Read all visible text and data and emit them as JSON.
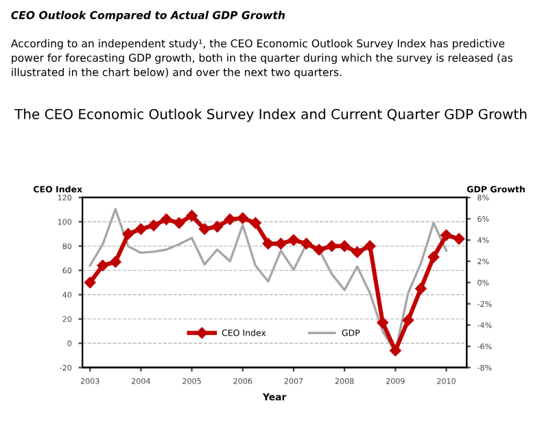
{
  "chart_data": {
    "type": "line",
    "title": "The CEO Economic Outlook Survey Index and Current Quarter GDP Growth",
    "annotations": [
      "CEO Outlook Compared to Actual GDP Growth",
      "According to an independent study¹, the CEO Economic Outlook Survey Index has predictive power for forecasting GDP growth, both in the quarter during which the survey is released (as illustrated in the chart below) and over the next two quarters."
    ],
    "xlabel": "Year",
    "ylabel": "CEO Index",
    "y2label": "GDP Growth",
    "xlim": [
      2002.85,
      2010.4
    ],
    "xticks": [
      2003,
      2004,
      2005,
      2006,
      2007,
      2008,
      2009,
      2010
    ],
    "ylim": [
      -20,
      120
    ],
    "yticks": [
      -20,
      0,
      20,
      40,
      60,
      80,
      100,
      120
    ],
    "y2lim": [
      -8,
      8
    ],
    "y2ticks": [
      {
        "value": -8,
        "label": "-8%"
      },
      {
        "value": -6,
        "label": "-6%"
      },
      {
        "value": -4,
        "label": "-4%"
      },
      {
        "value": -2,
        "label": "-2%"
      },
      {
        "value": 0,
        "label": "0%"
      },
      {
        "value": 2,
        "label": "2%"
      },
      {
        "value": 4,
        "label": "4%"
      },
      {
        "value": 6,
        "label": "6%"
      },
      {
        "value": 8,
        "label": "8%"
      }
    ],
    "grid": "y",
    "legend": "bottom",
    "line_style": "solid",
    "series": [
      {
        "name": "CEO Index",
        "color": "#c00000",
        "marker": "diamond",
        "x": [
          2003,
          2003.25,
          2003.5,
          2003.75,
          2004,
          2004.25,
          2004.5,
          2004.75,
          2005,
          2005.25,
          2005.5,
          2005.75,
          2006,
          2006.25,
          2006.5,
          2006.75,
          2007,
          2007.25,
          2007.5,
          2007.75,
          2008,
          2008.25,
          2008.5,
          2008.75,
          2009,
          2009.25,
          2009.5,
          2009.75,
          2010,
          2010.25
        ],
        "values": [
          50,
          64,
          67,
          90,
          94,
          97,
          102,
          99,
          105,
          94,
          96,
          102,
          103,
          99,
          82,
          82,
          85,
          82,
          77,
          80,
          80,
          75,
          80,
          17,
          -6,
          19,
          45,
          71,
          89,
          86
        ]
      },
      {
        "name": "GDP",
        "color": "#a6a6a6",
        "marker": "none",
        "axis": "y2",
        "x": [
          2003,
          2003.25,
          2003.5,
          2003.75,
          2004,
          2004.25,
          2004.5,
          2004.75,
          2005,
          2005.25,
          2005.5,
          2005.75,
          2006,
          2006.25,
          2006.5,
          2006.75,
          2007,
          2007.25,
          2007.5,
          2007.75,
          2008,
          2008.25,
          2008.5,
          2008.75,
          2009,
          2009.25,
          2009.5,
          2009.75,
          2010
        ],
        "values": [
          1.6,
          3.6,
          6.9,
          3.4,
          2.8,
          2.9,
          3.1,
          3.6,
          4.2,
          1.7,
          3.1,
          2.0,
          5.4,
          1.6,
          0.1,
          3.0,
          1.2,
          3.6,
          3.1,
          0.8,
          -0.7,
          1.5,
          -1.0,
          -4.6,
          -6.5,
          -1.0,
          1.8,
          5.6,
          3.0
        ]
      }
    ]
  }
}
